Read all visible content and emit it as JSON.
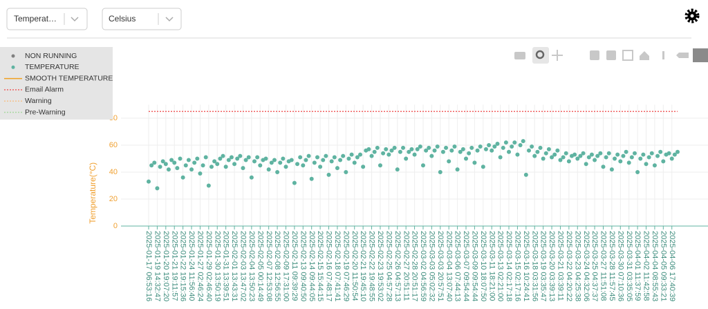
{
  "ui": {
    "selects": [
      "Temperat…",
      "Celsius"
    ]
  },
  "chart_data": {
    "type": "scatter",
    "y_label": "Temperature(°C)",
    "ylim": [
      0,
      90
    ],
    "yticks": [
      0,
      20,
      40,
      60,
      80
    ],
    "grid": true,
    "categories": [
      "2025-01-17 06:53:16",
      null,
      null,
      "2025-01-19 14:32:47",
      null,
      null,
      "2025-01-20 19:07:20",
      null,
      null,
      "2025-01-21 19:11:57",
      null,
      null,
      "2025-01-22 19:15:36",
      null,
      null,
      "2025-01-24 11:56:40",
      null,
      null,
      "2025-01-27 02:46:24",
      null,
      null,
      "2025-01-29 02:46:40",
      null,
      null,
      "2025-01-30 13:50:19",
      null,
      null,
      "2025-01-31 13:39:51",
      null,
      null,
      "2025-02-01 13:43:31",
      null,
      null,
      "2025-02-03 13:47:02",
      null,
      null,
      "2025-02-04 13:50:23",
      null,
      null,
      "2025-02-05 00:14:49",
      null,
      null,
      "2025-02-07 12:53:08",
      null,
      null,
      "2025-02-08 12:56:55",
      null,
      null,
      "2025-02-09 17:31:00",
      null,
      null,
      "2025-02-11 09:39:29",
      null,
      null,
      "2025-02-13 09:40:50",
      null,
      null,
      "2025-02-14 09:44:05",
      null,
      null,
      "2025-02-15 15:44:15",
      null,
      null,
      "2025-02-16 07:48:17",
      null,
      null,
      "2025-02-18 07:41:41",
      null,
      null,
      "2025-02-19 07:46:29",
      null,
      null,
      "2025-02-20 11:50:54",
      null,
      null,
      "2025-02-21 19:45:10",
      null,
      null,
      "2025-02-22 19:48:55",
      null,
      null,
      "2025-02-23 19:53:02",
      null,
      null,
      "2025-02-25 04:57:28",
      null,
      null,
      "2025-02-26 04:57:13",
      null,
      null,
      "2025-02-27 20:51:11",
      null,
      null,
      "2025-02-28 20:51:17",
      null,
      null,
      "2025-03-02 04:56:59",
      null,
      null,
      "2025-03-03 05:02:32",
      null,
      null,
      "2025-03-03 20:57:51",
      null,
      null,
      "2025-03-04 13:07:40",
      null,
      null,
      "2025-03-06 07:44:13",
      null,
      null,
      "2025-03-07 09:54:44",
      null,
      null,
      "2025-03-09 09:54:44",
      null,
      null,
      "2025-03-10 18:07:50",
      null,
      null,
      "2025-03-11 18:21:00",
      null,
      null,
      "2025-03-13 02:21:00",
      null,
      null,
      "2025-03-14 02:17:18",
      null,
      null,
      "2025-03-15 02:17:16",
      null,
      null,
      "2025-03-16 10:24:41",
      null,
      null,
      "2025-03-18 03:31:56",
      null,
      null,
      "2025-03-19 03:35:47",
      null,
      null,
      "2025-03-20 03:39:13",
      null,
      null,
      "2025-03-21 03:39:11",
      null,
      null,
      "2025-03-22 04:20:22",
      null,
      null,
      "2025-03-23 04:25:38",
      null,
      null,
      "2025-03-24 04:32:06",
      null,
      null,
      "2025-03-25 04:37:37",
      null,
      null,
      "2025-03-27 11:51:08",
      null,
      null,
      "2025-03-28 11:57:45",
      null,
      null,
      "2025-03-30 07:10:36",
      null,
      null,
      "2025-03-31 03:35:05",
      null,
      null,
      "2025-04-01 11:37:59",
      null,
      null,
      "2025-04-02 11:42:58",
      null,
      null,
      "2025-04-04 08:55:43",
      null,
      null,
      "2025-04-05 09:33:21",
      null,
      null,
      "2025-04-06 17:40:39",
      null,
      null
    ],
    "series": [
      {
        "name": "NON RUNNING",
        "color": "#808080"
      },
      {
        "name": "TEMPERATURE",
        "color": "#5fb3a1",
        "values": [
          33,
          45,
          47,
          28,
          44,
          48,
          46,
          42,
          49,
          47,
          43,
          50,
          36,
          45,
          49,
          42,
          47,
          50,
          39,
          45,
          51,
          30,
          44,
          48,
          46,
          50,
          52,
          44,
          49,
          51,
          46,
          50,
          52,
          43,
          49,
          51,
          36,
          48,
          51,
          45,
          49,
          50,
          42,
          47,
          49,
          40,
          47,
          50,
          44,
          48,
          49,
          32,
          46,
          51,
          45,
          49,
          52,
          35,
          47,
          51,
          44,
          49,
          52,
          38,
          48,
          51,
          43,
          49,
          52,
          40,
          50,
          53,
          47,
          51,
          53,
          44,
          56,
          57,
          52,
          55,
          58,
          45,
          54,
          57,
          53,
          56,
          58,
          42,
          55,
          58,
          50,
          55,
          57,
          53,
          57,
          59,
          45,
          56,
          58,
          52,
          56,
          59,
          40,
          55,
          58,
          48,
          56,
          59,
          42,
          55,
          57,
          50,
          54,
          58,
          47,
          56,
          59,
          44,
          57,
          60,
          56,
          59,
          61,
          51,
          58,
          62,
          55,
          59,
          62,
          53,
          60,
          63,
          38,
          56,
          59,
          52,
          55,
          58,
          50,
          54,
          57,
          51,
          53,
          56,
          49,
          51,
          54,
          48,
          52,
          53,
          50,
          52,
          54,
          46,
          51,
          53,
          49,
          52,
          54,
          44,
          51,
          54,
          42,
          50,
          53,
          48,
          52,
          55,
          47,
          51,
          54,
          40,
          50,
          53,
          46,
          51,
          54,
          45,
          52,
          55,
          48,
          53,
          54,
          50,
          53,
          55
        ]
      },
      {
        "name": "SMOOTH TEMPERATURE",
        "color": "#f0a020"
      },
      {
        "name": "Email Alarm",
        "color": "#f06060",
        "value": 85
      },
      {
        "name": "Warning",
        "color": "#f5c08a"
      },
      {
        "name": "Pre-Warning",
        "color": "#a8d8a0"
      }
    ]
  }
}
